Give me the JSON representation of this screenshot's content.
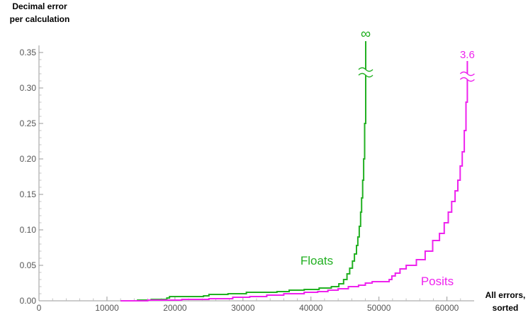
{
  "chart_data": {
    "type": "line",
    "title": "",
    "xlabel": [
      "All errors,",
      "sorted"
    ],
    "ylabel": [
      "Decimal error",
      "per calculation"
    ],
    "xlim": [
      0,
      64000
    ],
    "ylim": [
      0,
      0.36
    ],
    "x_ticks": [
      0,
      10000,
      20000,
      30000,
      40000,
      50000,
      60000
    ],
    "x_tick_labels": [
      "0",
      "10000",
      "20000",
      "30000",
      "40000",
      "50000",
      "60000"
    ],
    "y_ticks": [
      0,
      0.05,
      0.1,
      0.15,
      0.2,
      0.25,
      0.3,
      0.35
    ],
    "y_tick_labels": [
      "0.00",
      "0.05",
      "0.10",
      "0.15",
      "0.20",
      "0.25",
      "0.30",
      "0.35"
    ],
    "grid": false,
    "legend": "none",
    "series": [
      {
        "name": "Floats",
        "color": "#22b022",
        "line_style": "step",
        "axis_break_at": 0.322,
        "overflow_label": "∞",
        "points": [
          [
            12000,
            0.0
          ],
          [
            14500,
            0.001
          ],
          [
            16500,
            0.002
          ],
          [
            18800,
            0.004
          ],
          [
            19200,
            0.006
          ],
          [
            24200,
            0.007
          ],
          [
            25000,
            0.009
          ],
          [
            27800,
            0.01
          ],
          [
            30500,
            0.012
          ],
          [
            35000,
            0.013
          ],
          [
            36800,
            0.015
          ],
          [
            39000,
            0.016
          ],
          [
            41200,
            0.018
          ],
          [
            43000,
            0.02
          ],
          [
            44100,
            0.024
          ],
          [
            44800,
            0.03
          ],
          [
            45300,
            0.038
          ],
          [
            45700,
            0.046
          ],
          [
            46100,
            0.056
          ],
          [
            46400,
            0.066
          ],
          [
            46700,
            0.078
          ],
          [
            46900,
            0.09
          ],
          [
            47100,
            0.105
          ],
          [
            47300,
            0.125
          ],
          [
            47450,
            0.145
          ],
          [
            47600,
            0.17
          ],
          [
            47750,
            0.2
          ],
          [
            47900,
            0.25
          ],
          [
            48050,
            0.3
          ]
        ]
      },
      {
        "name": "Posits",
        "color": "#ee22ee",
        "line_style": "step",
        "axis_break_at": 0.316,
        "overflow_label": "3.6",
        "points": [
          [
            12000,
            0.0
          ],
          [
            16000,
            0.001
          ],
          [
            21000,
            0.002
          ],
          [
            25000,
            0.003
          ],
          [
            28500,
            0.005
          ],
          [
            31000,
            0.006
          ],
          [
            33500,
            0.008
          ],
          [
            36000,
            0.01
          ],
          [
            39000,
            0.012
          ],
          [
            41000,
            0.013
          ],
          [
            42500,
            0.015
          ],
          [
            44000,
            0.017
          ],
          [
            45500,
            0.02
          ],
          [
            47000,
            0.022
          ],
          [
            48000,
            0.025
          ],
          [
            49000,
            0.027
          ],
          [
            51500,
            0.03
          ],
          [
            51900,
            0.035
          ],
          [
            52400,
            0.039
          ],
          [
            53100,
            0.045
          ],
          [
            54000,
            0.05
          ],
          [
            55500,
            0.058
          ],
          [
            56800,
            0.07
          ],
          [
            57900,
            0.085
          ],
          [
            58900,
            0.095
          ],
          [
            59600,
            0.11
          ],
          [
            60200,
            0.125
          ],
          [
            60700,
            0.14
          ],
          [
            61200,
            0.155
          ],
          [
            61600,
            0.17
          ],
          [
            61950,
            0.19
          ],
          [
            62250,
            0.21
          ],
          [
            62550,
            0.24
          ],
          [
            62800,
            0.28
          ],
          [
            63000,
            0.3
          ]
        ]
      }
    ]
  }
}
